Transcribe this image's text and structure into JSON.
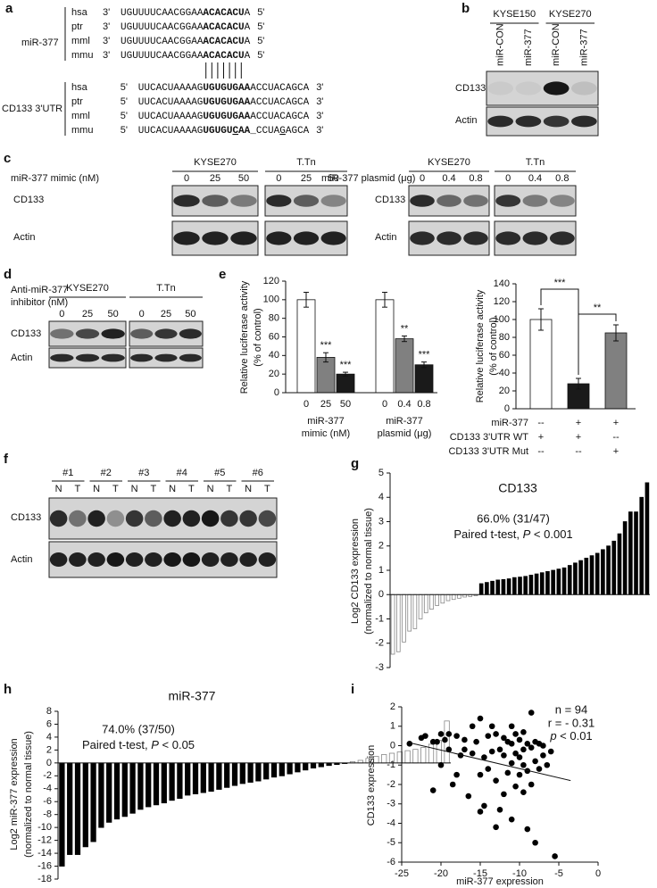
{
  "panel_a": {
    "letter": "a",
    "mirna_label": "miR-377",
    "utr_label": "CD133 3'UTR",
    "mirna_rows": [
      {
        "species": "hsa",
        "left": "3'",
        "seq": [
          "UGUUUUCAACGGAA",
          "ACACACU",
          "A"
        ],
        "right": "5'"
      },
      {
        "species": "ptr",
        "left": "3'",
        "seq": [
          "UGUUUUCAACGGAA",
          "ACACACU",
          "A"
        ],
        "right": "5'"
      },
      {
        "species": "mml",
        "left": "3'",
        "seq": [
          "UGUUUUCAACGGAA",
          "ACACACU",
          "A"
        ],
        "right": "5'"
      },
      {
        "species": "mmu",
        "left": "3'",
        "seq": [
          "UGUUUUCAACGGAA",
          "ACACACU",
          "A"
        ],
        "right": "5'"
      }
    ],
    "utr_rows": [
      {
        "species": "hsa",
        "left": "5'",
        "seq": [
          "UUCACUAAAAG",
          "UGUGUGAA",
          "ACCUACAGCA"
        ],
        "right": "3'"
      },
      {
        "species": "ptr",
        "left": "5'",
        "seq": [
          "UUCACUAAAAG",
          "UGUGUGAA",
          "ACCUACAGCA"
        ],
        "right": "3'"
      },
      {
        "species": "mml",
        "left": "5'",
        "seq": [
          "UUCACUAAAAG",
          "UGUGUGAA",
          "ACCUACAGCA"
        ],
        "right": "3'"
      },
      {
        "species": "mmu",
        "left": "5'",
        "seq": [
          "UUCACUAAAAG",
          "UGUGU",
          "C",
          "AA",
          "_CCUA",
          "G",
          "AGCA"
        ],
        "right": "3'"
      }
    ]
  },
  "panel_b": {
    "letter": "b",
    "cell_lines": [
      "KYSE150",
      "KYSE270"
    ],
    "lanes": [
      "miR-CON",
      "miR-377",
      "miR-CON",
      "miR-377"
    ],
    "rows": [
      "CD133",
      "Actin"
    ]
  },
  "panel_c": {
    "letter": "c",
    "left": {
      "treatment": "miR-377 mimic (nM)",
      "cell_lines": [
        "KYSE270",
        "T.Tn"
      ],
      "doses": [
        "0",
        "25",
        "50"
      ],
      "rows": [
        "CD133",
        "Actin"
      ]
    },
    "right": {
      "treatment": "miR-377 plasmid (μg)",
      "cell_lines": [
        "KYSE270",
        "T.Tn"
      ],
      "doses": [
        "0",
        "0.4",
        "0.8"
      ],
      "rows": [
        "CD133",
        "Actin"
      ]
    }
  },
  "panel_d": {
    "letter": "d",
    "treatment": [
      "Anti-miR-377",
      "inhibitor (nM)"
    ],
    "cell_lines": [
      "KYSE270",
      "T.Tn"
    ],
    "doses": [
      "0",
      "25",
      "50"
    ],
    "rows": [
      "CD133",
      "Actin"
    ]
  },
  "panel_f": {
    "letter": "f",
    "patients": [
      "#1",
      "#2",
      "#3",
      "#4",
      "#5",
      "#6"
    ],
    "lanes": [
      "N",
      "T"
    ],
    "rows": [
      "CD133",
      "Actin"
    ]
  },
  "chart_data": [
    {
      "panel": "e",
      "type": "bar",
      "y_label": [
        "Relative luciferase activity",
        "(% of control)"
      ],
      "categories": [
        "0",
        "25",
        "50",
        "0",
        "0.4",
        "0.8"
      ],
      "group_labels": [
        [
          "miR-377",
          "mimic (nM)"
        ],
        [
          "miR-377",
          "plasmid (μg)"
        ]
      ],
      "values": [
        100,
        38,
        20,
        100,
        58,
        30
      ],
      "errors": [
        8,
        5,
        2,
        8,
        3,
        3
      ],
      "colors": [
        "#ffffff",
        "#808080",
        "#1a1a1a",
        "#ffffff",
        "#808080",
        "#1a1a1a"
      ],
      "significance": [
        null,
        "***",
        "***",
        null,
        "**",
        "***"
      ],
      "ylim": [
        0,
        120
      ],
      "yticks": [
        0,
        20,
        40,
        60,
        80,
        100,
        120
      ]
    },
    {
      "type": "bar",
      "y_label": [
        "Relative luciferase activity",
        "(% of control)"
      ],
      "values": [
        100,
        28,
        85
      ],
      "errors": [
        12,
        6,
        9
      ],
      "colors": [
        "#ffffff",
        "#1a1a1a",
        "#808080"
      ],
      "brackets": [
        "***",
        "**"
      ],
      "table": [
        {
          "label": "miR-377",
          "cells": [
            "--",
            "+",
            "+"
          ]
        },
        {
          "label": "CD133 3'UTR WT",
          "cells": [
            "+",
            "+",
            "--"
          ]
        },
        {
          "label": "CD133 3'UTR Mut",
          "cells": [
            "--",
            "--",
            "+"
          ]
        }
      ],
      "ylim": [
        0,
        140
      ],
      "yticks": [
        0,
        20,
        40,
        60,
        80,
        100,
        120,
        140
      ]
    },
    {
      "panel": "g",
      "type": "bar",
      "title": "CD133",
      "y_label": [
        "Log2 CD133 expression",
        "(normalized to normal tissue)"
      ],
      "annotations": [
        "66.0% (31/47)",
        [
          "Paired t-test, ",
          "P",
          " < 0.001"
        ]
      ],
      "values": [
        -2.45,
        -2.35,
        -1.95,
        -1.5,
        -1.4,
        -1.0,
        -0.75,
        -0.6,
        -0.45,
        -0.35,
        -0.25,
        -0.2,
        -0.15,
        -0.1,
        -0.08,
        -0.05,
        0.45,
        0.5,
        0.55,
        0.6,
        0.62,
        0.65,
        0.7,
        0.72,
        0.75,
        0.8,
        0.85,
        0.9,
        0.95,
        1.0,
        1.05,
        1.1,
        1.2,
        1.3,
        1.4,
        1.5,
        1.6,
        1.7,
        1.85,
        2.0,
        2.2,
        2.5,
        3.0,
        3.4,
        3.4,
        4.0,
        4.6
      ],
      "positive_color": "#000000",
      "negative_color": "#ffffff",
      "outline_color": "#888888",
      "ylim": [
        -3,
        5
      ],
      "yticks": [
        -3,
        -2,
        -1,
        0,
        1,
        2,
        3,
        4,
        5
      ]
    },
    {
      "panel": "h",
      "type": "bar",
      "title": "miR-377",
      "y_label": [
        "Log2 miR-377 expression",
        "(normalized to normal tissue)"
      ],
      "annotations": [
        "74.0% (37/50)",
        [
          "Paired t-test, ",
          "P",
          " < 0.05"
        ]
      ],
      "values": [
        -16,
        -14.2,
        -14.2,
        -13,
        -12.2,
        -10,
        -9.2,
        -8.7,
        -8.3,
        -7.8,
        -7.2,
        -6.8,
        -6.5,
        -6.2,
        -5.8,
        -5.5,
        -5.0,
        -4.8,
        -4.6,
        -4.4,
        -4.1,
        -3.8,
        -3.5,
        -3.2,
        -3.0,
        -2.8,
        -2.5,
        -2.2,
        -2.0,
        -1.7,
        -1.4,
        -1.1,
        -0.8,
        -0.6,
        -0.4,
        -0.25,
        -0.1,
        0.2,
        0.4,
        0.7,
        1.0,
        1.3,
        1.5,
        1.7,
        1.9,
        2.1,
        2.4,
        2.9,
        3.5,
        6.5
      ],
      "positive_color": "#ffffff",
      "negative_color": "#000000",
      "outline_color": "#888888",
      "ylim": [
        -18,
        8
      ],
      "yticks": [
        -18,
        -16,
        -14,
        -12,
        -10,
        -8,
        -6,
        -4,
        -2,
        0,
        2,
        4,
        6,
        8
      ]
    },
    {
      "panel": "i",
      "type": "scatter",
      "x_label": "miR-377 expression",
      "y_label": "CD133 expression",
      "annotations": [
        "n = 94",
        "r = - 0.31",
        [
          "p",
          " < 0.01"
        ]
      ],
      "x": [
        -22,
        -21,
        -21,
        -20,
        -20,
        -19.5,
        -19,
        -19,
        -18.5,
        -18,
        -18,
        -17.5,
        -17,
        -17,
        -16.5,
        -16,
        -16,
        -15.5,
        -15,
        -15,
        -14.5,
        -14.5,
        -14,
        -14,
        -13.5,
        -13.5,
        -13,
        -13,
        -12.5,
        -12.5,
        -12,
        -12,
        -12,
        -11.5,
        -11.5,
        -11,
        -11,
        -11,
        -10.5,
        -10.5,
        -10.5,
        -10,
        -10,
        -10,
        -9.5,
        -9.5,
        -9.5,
        -9,
        -9,
        -9,
        -8.5,
        -8.5,
        -8.5,
        -8,
        -8,
        -8,
        -7.5,
        -7.5,
        -7,
        -7,
        -6.5,
        -6,
        -5.5,
        -24,
        -22.5,
        -20.5,
        -15,
        -13,
        -11,
        -9.5
      ],
      "y": [
        0.5,
        -2.3,
        0.2,
        0.6,
        -1.0,
        0.3,
        -0.2,
        0.6,
        -2.0,
        0.5,
        -1.5,
        -0.5,
        0.3,
        -0.2,
        -2.6,
        1.0,
        -0.4,
        0.2,
        1.4,
        -1.5,
        -0.6,
        -3.1,
        0.5,
        -1.2,
        1.0,
        -0.3,
        0.6,
        -1.8,
        -0.2,
        -3.3,
        0.4,
        -0.5,
        -2.5,
        0.2,
        -1.4,
        1.0,
        0.1,
        -0.9,
        0.6,
        -0.4,
        -2.1,
        0.3,
        -0.6,
        -1.5,
        0.7,
        -0.2,
        -1.0,
        0.1,
        -1.3,
        -4.3,
        1.7,
        -0.1,
        -2.0,
        0.2,
        -0.8,
        -5.0,
        0.1,
        -1.2,
        0,
        -0.5,
        -1.0,
        -0.3,
        -5.7,
        0.1,
        0.4,
        0.2,
        -3.4,
        -4.2,
        -3.8,
        -2.4
      ],
      "trend_line": {
        "x": [
          -24,
          -3.5
        ],
        "y": [
          0.15,
          -1.8
        ]
      },
      "color": "#000000",
      "xlim": [
        -25,
        0
      ],
      "xticks": [
        -25,
        -20,
        -15,
        -10,
        -5,
        0
      ],
      "ylim": [
        -6,
        2
      ],
      "yticks": [
        -6,
        -5,
        -4,
        -3,
        -2,
        -1,
        0,
        1,
        2
      ]
    }
  ]
}
